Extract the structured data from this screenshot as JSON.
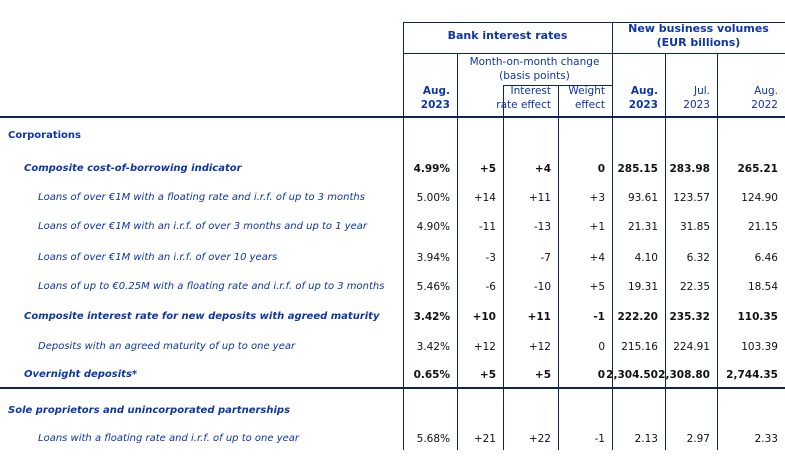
{
  "colors": {
    "label_blue": "#0e35a5",
    "border_navy": "#0d2850",
    "data_black": "#111111",
    "background": "#ffffff"
  },
  "header": {
    "bank_rates_title": "Bank interest rates",
    "volumes_title_line1": "New business volumes",
    "volumes_title_line2": "(EUR billions)",
    "mom_change_line1": "Month-on-month change",
    "mom_change_line2": "(basis points)",
    "columns": [
      {
        "name": "rates-aug-2023",
        "line1": "Aug.",
        "line2": "2023",
        "bold": true
      },
      {
        "name": "mom-total",
        "line1": "",
        "line2": "",
        "bold": false
      },
      {
        "name": "interest-rate-effect",
        "line1": "Interest",
        "line2": "rate effect",
        "bold": false
      },
      {
        "name": "weight-effect",
        "line1": "Weight",
        "line2": "effect",
        "bold": false
      },
      {
        "name": "volumes-aug-2023",
        "line1": "Aug.",
        "line2": "2023",
        "bold": true
      },
      {
        "name": "volumes-jul-2023",
        "line1": "Jul.",
        "line2": "2023",
        "bold": false
      },
      {
        "name": "volumes-aug-2022",
        "line1": "Aug.",
        "line2": "2022",
        "bold": false
      }
    ]
  },
  "rows": [
    {
      "label": "Corporations",
      "style": "section",
      "values": null
    },
    {
      "label": "Composite cost-of-borrowing indicator",
      "style": "composite",
      "values": [
        "4.99%",
        "+5",
        "+4",
        "0",
        "285.15",
        "283.98",
        "265.21"
      ]
    },
    {
      "label": "Loans of over €1M with a floating rate and i.r.f. of up to 3 months",
      "style": "detail",
      "values": [
        "5.00%",
        "+14",
        "+11",
        "+3",
        "93.61",
        "123.57",
        "124.90"
      ]
    },
    {
      "label": "Loans of over €1M with an i.r.f. of over 3 months and up to 1 year",
      "style": "detail",
      "values": [
        "4.90%",
        "-11",
        "-13",
        "+1",
        "21.31",
        "31.85",
        "21.15"
      ]
    },
    {
      "label": "Loans of over €1M with an i.r.f. of over 10 years",
      "style": "detail",
      "values": [
        "3.94%",
        "-3",
        "-7",
        "+4",
        "4.10",
        "6.32",
        "6.46"
      ]
    },
    {
      "label": "Loans of up to €0.25M with a floating rate and i.r.f. of up to 3 months",
      "style": "detail",
      "values": [
        "5.46%",
        "-6",
        "-10",
        "+5",
        "19.31",
        "22.35",
        "18.54"
      ]
    },
    {
      "label": "Composite interest rate for new deposits with agreed maturity",
      "style": "composite",
      "values": [
        "3.42%",
        "+10",
        "+11",
        "-1",
        "222.20",
        "235.32",
        "110.35"
      ]
    },
    {
      "label": "Deposits with an agreed maturity of up to one year",
      "style": "detail",
      "values": [
        "3.42%",
        "+12",
        "+12",
        "0",
        "215.16",
        "224.91",
        "103.39"
      ]
    },
    {
      "label": "Overnight deposits*",
      "style": "composite",
      "values": [
        "0.65%",
        "+5",
        "+5",
        "0",
        "2,304.50",
        "2,308.80",
        "2,744.35"
      ]
    },
    {
      "label": "Sole proprietors and unincorporated partnerships",
      "style": "section-italic",
      "values": null
    },
    {
      "label": "Loans with a floating rate and i.r.f. of up to one year",
      "style": "detail",
      "values": [
        "5.68%",
        "+21",
        "+22",
        "-1",
        "2.13",
        "2.97",
        "2.33"
      ]
    }
  ]
}
